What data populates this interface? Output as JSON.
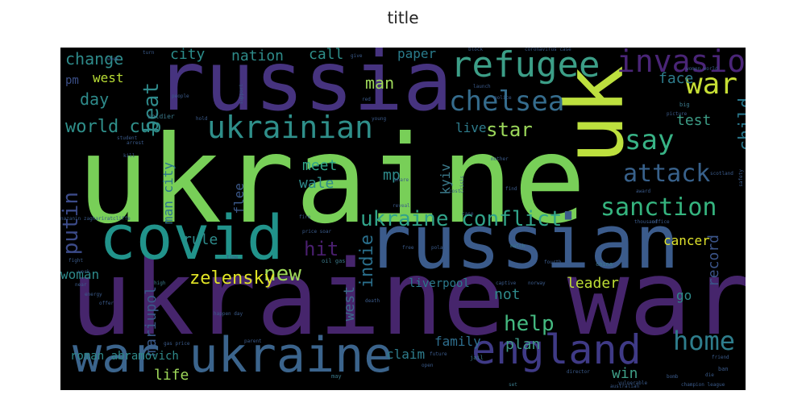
{
  "title": "title",
  "chart_data": {
    "type": "wordcloud",
    "title": "title",
    "background": "#000000",
    "words": [
      {
        "text": "ukraine",
        "color": "#78cf58"
      },
      {
        "text": "ukraine war",
        "color": "#46256c"
      },
      {
        "text": "russia",
        "color": "#46337f"
      },
      {
        "text": "russian",
        "color": "#3b5b8b"
      },
      {
        "text": "covid",
        "color": "#21938b"
      },
      {
        "text": "uk",
        "color": "#bde03e"
      },
      {
        "text": "war ukraine",
        "color": "#3b648c"
      },
      {
        "text": "england",
        "color": "#3f3a86"
      },
      {
        "text": "refugee",
        "color": "#3c9e87"
      },
      {
        "text": "invasion",
        "color": "#4a2577"
      },
      {
        "text": "ukrainian",
        "color": "#2f8f8a"
      },
      {
        "text": "chelsea",
        "color": "#356c8d"
      },
      {
        "text": "war",
        "color": "#c7df35"
      },
      {
        "text": "say",
        "color": "#38b386"
      },
      {
        "text": "attack",
        "color": "#38618b"
      },
      {
        "text": "sanction",
        "color": "#35b47f"
      },
      {
        "text": "ukraine conflict",
        "color": "#31a38a"
      },
      {
        "text": "home",
        "color": "#2e7d8c"
      },
      {
        "text": "world cup",
        "color": "#2f8f8a"
      },
      {
        "text": "beat",
        "color": "#2f8a8b"
      },
      {
        "text": "putin",
        "color": "#3c4b89"
      },
      {
        "text": "star",
        "color": "#9bd75a"
      },
      {
        "text": "child",
        "color": "#2a788d"
      },
      {
        "text": "help",
        "color": "#44b980"
      },
      {
        "text": "new",
        "color": "#9fd95a"
      },
      {
        "text": "hit",
        "color": "#4a1f6f"
      },
      {
        "text": "zelensky",
        "color": "#e2e526"
      },
      {
        "text": "change",
        "color": "#2e8a8a"
      },
      {
        "text": "nation",
        "color": "#2e8b89"
      },
      {
        "text": "city",
        "color": "#2b8c8a"
      },
      {
        "text": "call",
        "color": "#2f8f8a"
      },
      {
        "text": "paper",
        "color": "#2a7c8c"
      },
      {
        "text": "man",
        "color": "#9ed85a"
      },
      {
        "text": "day",
        "color": "#2e8a8a"
      },
      {
        "text": "west",
        "color": "#b9dd35"
      },
      {
        "text": "pm",
        "color": "#3b4f88"
      },
      {
        "text": "face",
        "color": "#2e7c8c"
      },
      {
        "text": "test",
        "color": "#3d9c86"
      },
      {
        "text": "live",
        "color": "#2e7c8c"
      },
      {
        "text": "meet",
        "color": "#30a58a"
      },
      {
        "text": "mp",
        "color": "#2e8a8a"
      },
      {
        "text": "kyiv",
        "color": "#3b7a8b"
      },
      {
        "text": "wale",
        "color": "#2e8a8a"
      },
      {
        "text": "flee",
        "color": "#3c598a"
      },
      {
        "text": "man city",
        "color": "#2c748d"
      },
      {
        "text": "rule",
        "color": "#2e8a8a"
      },
      {
        "text": "cancer",
        "color": "#e0e32c"
      },
      {
        "text": "indie",
        "color": "#2a6f8c"
      },
      {
        "text": "record",
        "color": "#3b5488"
      },
      {
        "text": "west",
        "color": "#3d6b8b"
      },
      {
        "text": "leader",
        "color": "#bede35"
      },
      {
        "text": "not",
        "color": "#2f8a8b"
      },
      {
        "text": "go",
        "color": "#2e8a8a"
      },
      {
        "text": "woman",
        "color": "#2e8a8a"
      },
      {
        "text": "mariupol",
        "color": "#3a5a8a"
      },
      {
        "text": "liverpool",
        "color": "#2b7a8c"
      },
      {
        "text": "plan",
        "color": "#3f9a86"
      },
      {
        "text": "win",
        "color": "#3f9e86"
      },
      {
        "text": "family",
        "color": "#2e6e8e"
      },
      {
        "text": "claim",
        "color": "#2e7c8c"
      },
      {
        "text": "life",
        "color": "#9fd95a"
      },
      {
        "text": "roman abramovich",
        "color": "#2e8a8a"
      },
      {
        "text": "coronavirus case",
        "color": "#3a5a8a"
      },
      {
        "text": "soldier",
        "color": "#3b7a8b"
      },
      {
        "text": "nazanin zaghariratcliffe",
        "color": "#3a5a8a"
      },
      {
        "text": "oil gas",
        "color": "#3b7a8b"
      },
      {
        "text": "price soar",
        "color": "#3b5b8b"
      },
      {
        "text": "happen day",
        "color": "#3b5b8b"
      },
      {
        "text": "energy",
        "color": "#3b5b8b"
      },
      {
        "text": "fight",
        "color": "#3b5b8b"
      },
      {
        "text": "offer",
        "color": "#3b5b8b"
      },
      {
        "text": "high",
        "color": "#3b7a8b"
      },
      {
        "text": "match",
        "color": "#3b7a8b"
      },
      {
        "text": "fourth",
        "color": "#3b5b8b"
      },
      {
        "text": "china",
        "color": "#3b7a8b"
      },
      {
        "text": "thousand",
        "color": "#3b5b8b"
      },
      {
        "text": "award",
        "color": "#3b5b8b"
      },
      {
        "text": "fire",
        "color": "#3b5b8b"
      },
      {
        "text": "reveal",
        "color": "#3b5b8b"
      },
      {
        "text": "cost",
        "color": "#3b5b8b"
      },
      {
        "text": "find",
        "color": "#3b5b8b"
      },
      {
        "text": "jail",
        "color": "#3b7a8b"
      },
      {
        "text": "director",
        "color": "#3b5b8b"
      },
      {
        "text": "set",
        "color": "#3b7a8b"
      },
      {
        "text": "open",
        "color": "#3b5b8b"
      },
      {
        "text": "people",
        "color": "#3b5b8b"
      },
      {
        "text": "kill",
        "color": "#3b5b8b"
      },
      {
        "text": "young",
        "color": "#3b5b8b"
      },
      {
        "text": "give",
        "color": "#3b5b8b"
      },
      {
        "text": "red",
        "color": "#3b5b8b"
      },
      {
        "text": "turn",
        "color": "#3b5b8b"
      },
      {
        "text": "support",
        "color": "#3b5b8b"
      },
      {
        "text": "police",
        "color": "#3b5b8b"
      },
      {
        "text": "big",
        "color": "#3b7a8b"
      },
      {
        "text": "picture",
        "color": "#3b5b8b"
      },
      {
        "text": "safety",
        "color": "#3b5b8b"
      },
      {
        "text": "scotland",
        "color": "#3b5b8b"
      },
      {
        "text": "women world",
        "color": "#3b5b8b"
      },
      {
        "text": "time",
        "color": "#3b5b8b"
      },
      {
        "text": "week",
        "color": "#3b5b8b"
      },
      {
        "text": "near",
        "color": "#3b5b8b"
      },
      {
        "text": "work",
        "color": "#3b5b8b"
      },
      {
        "text": "may",
        "color": "#3b7a8b"
      },
      {
        "text": "bomb",
        "color": "#3b5b8b"
      },
      {
        "text": "die",
        "color": "#3b5b8b"
      },
      {
        "text": "champion league",
        "color": "#3b5b8b"
      },
      {
        "text": "friend",
        "color": "#3b5b8b"
      },
      {
        "text": "gas price",
        "color": "#3b5b8b"
      },
      {
        "text": "parent",
        "color": "#3b5b8b"
      },
      {
        "text": "future",
        "color": "#3b5b8b"
      },
      {
        "text": "australian",
        "color": "#3b5b8b"
      },
      {
        "text": "free",
        "color": "#3b5b8b"
      },
      {
        "text": "poland",
        "color": "#3b5b8b"
      },
      {
        "text": "block",
        "color": "#3b5b8b"
      },
      {
        "text": "launch",
        "color": "#3b5b8b"
      },
      {
        "text": "hold",
        "color": "#3b5b8b"
      },
      {
        "text": "captive",
        "color": "#3b5b8b"
      },
      {
        "text": "norway",
        "color": "#3b5b8b"
      },
      {
        "text": "vulnerable",
        "color": "#3b5b8b"
      },
      {
        "text": "office",
        "color": "#3b5b8b"
      },
      {
        "text": "ban",
        "color": "#3b5b8b"
      },
      {
        "text": "death",
        "color": "#3b5b8b"
      },
      {
        "text": "student",
        "color": "#3b5b8b"
      },
      {
        "text": "arrest",
        "color": "#3b5b8b"
      },
      {
        "text": "share",
        "color": "#3b5b8b"
      },
      {
        "text": "case",
        "color": "#3b5b8b"
      },
      {
        "text": "crisis",
        "color": "#3b5b8b"
      },
      {
        "text": "mother",
        "color": "#3b5b8b"
      }
    ]
  }
}
